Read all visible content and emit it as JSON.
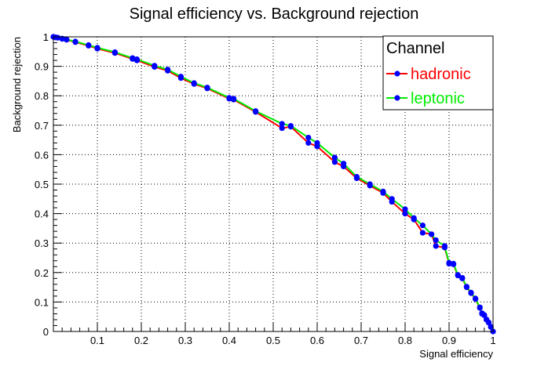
{
  "chart_data": {
    "type": "line",
    "title": "Signal efficiency vs. Background rejection",
    "xlabel": "Signal efficiency",
    "ylabel": "Background rejection",
    "xlim": [
      0,
      1
    ],
    "ylim": [
      0,
      1
    ],
    "x_ticks": [
      "0.1",
      "0.2",
      "0.3",
      "0.4",
      "0.5",
      "0.6",
      "0.7",
      "0.8",
      "0.9",
      "1"
    ],
    "y_ticks": [
      "0",
      "0.1",
      "0.2",
      "0.3",
      "0.4",
      "0.5",
      "0.6",
      "0.7",
      "0.8",
      "0.9",
      "1"
    ],
    "grid": true,
    "legend": {
      "title": "Channel",
      "placement": "top-right"
    },
    "marker_color": "#0000ff",
    "series": [
      {
        "name": "hadronic",
        "color": "#ff0000",
        "points": [
          [
            0.0,
            1.0
          ],
          [
            0.005,
            0.998
          ],
          [
            0.01,
            0.997
          ],
          [
            0.02,
            0.993
          ],
          [
            0.03,
            0.99
          ],
          [
            0.05,
            0.982
          ],
          [
            0.08,
            0.97
          ],
          [
            0.1,
            0.96
          ],
          [
            0.14,
            0.945
          ],
          [
            0.18,
            0.925
          ],
          [
            0.19,
            0.92
          ],
          [
            0.23,
            0.898
          ],
          [
            0.26,
            0.885
          ],
          [
            0.29,
            0.86
          ],
          [
            0.32,
            0.84
          ],
          [
            0.35,
            0.825
          ],
          [
            0.4,
            0.79
          ],
          [
            0.41,
            0.787
          ],
          [
            0.46,
            0.745
          ],
          [
            0.52,
            0.69
          ],
          [
            0.54,
            0.695
          ],
          [
            0.58,
            0.64
          ],
          [
            0.6,
            0.628
          ],
          [
            0.64,
            0.575
          ],
          [
            0.66,
            0.56
          ],
          [
            0.69,
            0.52
          ],
          [
            0.72,
            0.495
          ],
          [
            0.75,
            0.47
          ],
          [
            0.77,
            0.44
          ],
          [
            0.8,
            0.4
          ],
          [
            0.82,
            0.38
          ],
          [
            0.84,
            0.335
          ],
          [
            0.86,
            0.33
          ],
          [
            0.87,
            0.29
          ],
          [
            0.89,
            0.285
          ],
          [
            0.9,
            0.23
          ],
          [
            0.91,
            0.228
          ],
          [
            0.92,
            0.19
          ],
          [
            0.93,
            0.18
          ],
          [
            0.94,
            0.15
          ],
          [
            0.95,
            0.13
          ],
          [
            0.96,
            0.11
          ],
          [
            0.97,
            0.08
          ],
          [
            0.975,
            0.06
          ],
          [
            0.98,
            0.055
          ],
          [
            0.985,
            0.04
          ],
          [
            0.99,
            0.03
          ],
          [
            0.995,
            0.015
          ],
          [
            1.0,
            0.0
          ]
        ]
      },
      {
        "name": "leptonic",
        "color": "#00ee00",
        "points": [
          [
            0.0,
            1.0
          ],
          [
            0.005,
            0.998
          ],
          [
            0.01,
            0.997
          ],
          [
            0.02,
            0.994
          ],
          [
            0.03,
            0.991
          ],
          [
            0.05,
            0.984
          ],
          [
            0.08,
            0.972
          ],
          [
            0.1,
            0.963
          ],
          [
            0.14,
            0.948
          ],
          [
            0.18,
            0.928
          ],
          [
            0.19,
            0.924
          ],
          [
            0.23,
            0.902
          ],
          [
            0.26,
            0.889
          ],
          [
            0.29,
            0.865
          ],
          [
            0.32,
            0.843
          ],
          [
            0.35,
            0.828
          ],
          [
            0.4,
            0.793
          ],
          [
            0.41,
            0.79
          ],
          [
            0.46,
            0.748
          ],
          [
            0.52,
            0.705
          ],
          [
            0.54,
            0.698
          ],
          [
            0.58,
            0.658
          ],
          [
            0.6,
            0.64
          ],
          [
            0.64,
            0.59
          ],
          [
            0.66,
            0.57
          ],
          [
            0.69,
            0.525
          ],
          [
            0.72,
            0.5
          ],
          [
            0.75,
            0.475
          ],
          [
            0.77,
            0.45
          ],
          [
            0.8,
            0.415
          ],
          [
            0.82,
            0.385
          ],
          [
            0.84,
            0.36
          ],
          [
            0.86,
            0.33
          ],
          [
            0.87,
            0.31
          ],
          [
            0.89,
            0.29
          ],
          [
            0.9,
            0.233
          ],
          [
            0.91,
            0.23
          ],
          [
            0.92,
            0.192
          ],
          [
            0.93,
            0.182
          ],
          [
            0.94,
            0.152
          ],
          [
            0.95,
            0.132
          ],
          [
            0.96,
            0.112
          ],
          [
            0.97,
            0.082
          ],
          [
            0.975,
            0.062
          ],
          [
            0.98,
            0.056
          ],
          [
            0.985,
            0.041
          ],
          [
            0.99,
            0.031
          ],
          [
            0.995,
            0.016
          ],
          [
            1.0,
            0.0
          ]
        ]
      }
    ]
  }
}
